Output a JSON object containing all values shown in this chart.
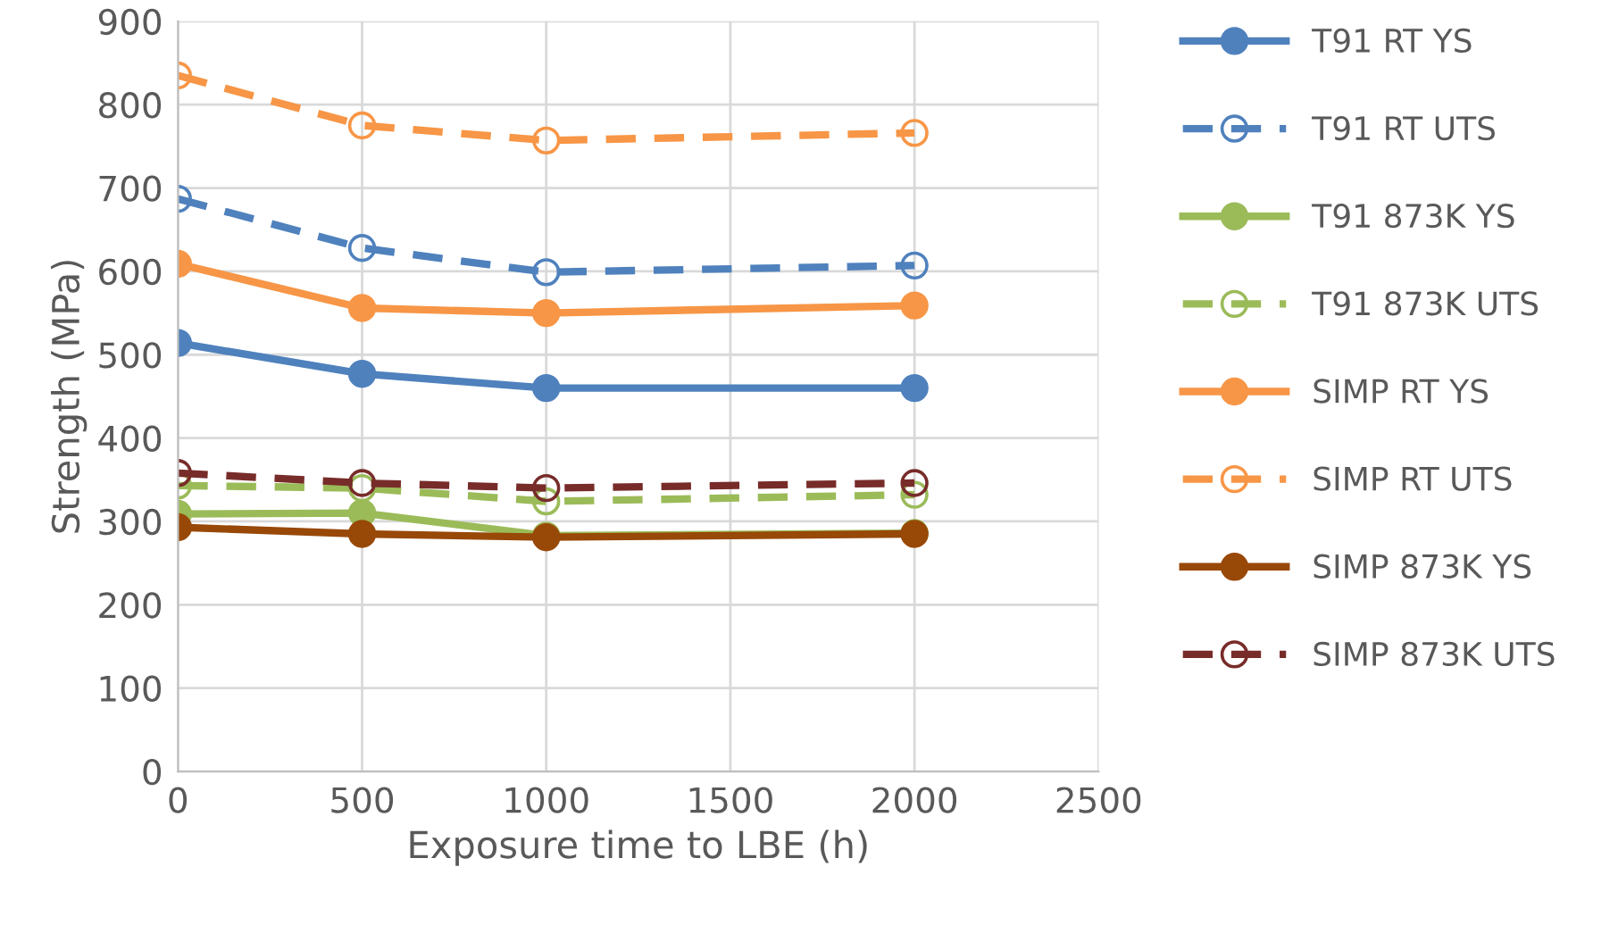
{
  "chart_data": {
    "type": "line",
    "xlabel": "Exposure time to LBE (h)",
    "ylabel": "Strength (MPa)",
    "x": [
      0,
      500,
      1000,
      2000
    ],
    "xlim": [
      0,
      2500
    ],
    "xticks": [
      0,
      500,
      1000,
      1500,
      2000,
      2500
    ],
    "ylim": [
      0,
      900
    ],
    "yticks": [
      0,
      100,
      200,
      300,
      400,
      500,
      600,
      700,
      800,
      900
    ],
    "grid": true,
    "legend": "right",
    "marker": "circle",
    "series": [
      {
        "name": "T91 RT YS",
        "color": "#4f81bd",
        "line_style": "solid",
        "values": [
          514,
          477,
          460,
          460
        ]
      },
      {
        "name": "T91 RT UTS",
        "color": "#4f81bd",
        "line_style": "dashed",
        "values": [
          687,
          628,
          599,
          607
        ]
      },
      {
        "name": "T91 873K YS",
        "color": "#9bbb59",
        "line_style": "solid",
        "values": [
          309,
          310,
          283,
          286
        ]
      },
      {
        "name": "T91 873K UTS",
        "color": "#9bbb59",
        "line_style": "dashed",
        "values": [
          343,
          340,
          324,
          332
        ]
      },
      {
        "name": "SIMP RT YS",
        "color": "#f79646",
        "line_style": "solid",
        "values": [
          609,
          556,
          550,
          559
        ]
      },
      {
        "name": "SIMP RT UTS",
        "color": "#f79646",
        "line_style": "dashed",
        "values": [
          835,
          775,
          757,
          766
        ]
      },
      {
        "name": "SIMP 873K YS",
        "color": "#984807",
        "line_style": "solid",
        "values": [
          293,
          285,
          281,
          285
        ]
      },
      {
        "name": "SIMP 873K UTS",
        "color": "#772c2a",
        "line_style": "dashed",
        "values": [
          358,
          346,
          340,
          346
        ]
      }
    ]
  }
}
